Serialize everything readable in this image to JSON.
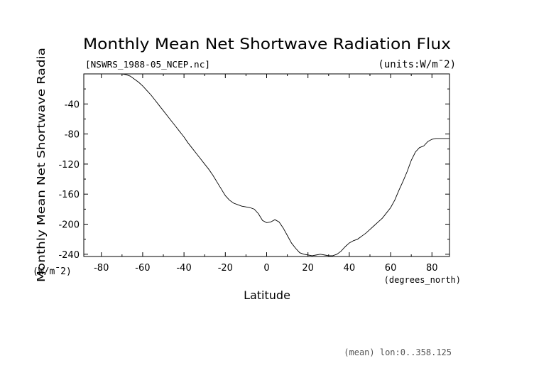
{
  "chart_data": {
    "type": "line",
    "title": "Monthly Mean Net Shortwave Radiation Flux",
    "file_label": "[NSWRS_1988-05_NCEP.nc]",
    "units_label": "(units:W/m¯2)",
    "ylabel": "Monthly Mean Net Shortwave Radia",
    "ylabel_units": "(W/m¯2)",
    "xlabel": "Latitude",
    "x_units": "(degrees_north)",
    "footer": "(mean) lon:0..358.125",
    "xlim": [
      -88.5,
      88.5
    ],
    "ylim": [
      -243,
      0
    ],
    "x_ticks": [
      -80,
      -60,
      -40,
      -20,
      0,
      20,
      40,
      60,
      80
    ],
    "y_ticks": [
      -40,
      -80,
      -120,
      -160,
      -200,
      -240
    ],
    "grid": false,
    "series": [
      {
        "color": "#000000",
        "x": [
          -72,
          -70,
          -68,
          -66,
          -64,
          -62,
          -60,
          -58,
          -56,
          -54,
          -52,
          -50,
          -48,
          -46,
          -44,
          -42,
          -40,
          -38,
          -36,
          -34,
          -32,
          -30,
          -28,
          -26,
          -24,
          -22,
          -20,
          -18,
          -16,
          -14,
          -12,
          -10,
          -8,
          -6,
          -4,
          -2,
          0,
          2,
          4,
          6,
          8,
          10,
          12,
          14,
          16,
          18,
          20,
          22,
          24,
          26,
          28,
          30,
          32,
          34,
          36,
          38,
          40,
          42,
          44,
          46,
          48,
          50,
          52,
          54,
          56,
          58,
          60,
          62,
          64,
          66,
          68,
          70,
          72,
          74,
          76,
          78,
          80,
          82,
          84,
          86,
          88.5
        ],
        "values": [
          0,
          0,
          -1,
          -3,
          -7,
          -11,
          -16,
          -22,
          -28,
          -35,
          -42,
          -49,
          -56,
          -63,
          -70,
          -77,
          -84,
          -92,
          -99,
          -106,
          -113,
          -120,
          -127,
          -135,
          -144,
          -153,
          -162,
          -168,
          -172,
          -174,
          -176,
          -177,
          -178,
          -180,
          -186,
          -195,
          -198,
          -197,
          -194,
          -197,
          -205,
          -215,
          -225,
          -232,
          -238,
          -240,
          -241,
          -242,
          -241,
          -240,
          -241,
          -242,
          -242,
          -240,
          -236,
          -230,
          -225,
          -222,
          -220,
          -216,
          -212,
          -207,
          -202,
          -197,
          -192,
          -185,
          -178,
          -168,
          -155,
          -143,
          -130,
          -115,
          -104,
          -98,
          -96,
          -90,
          -87,
          -86,
          -86,
          -86,
          -86
        ]
      }
    ]
  }
}
